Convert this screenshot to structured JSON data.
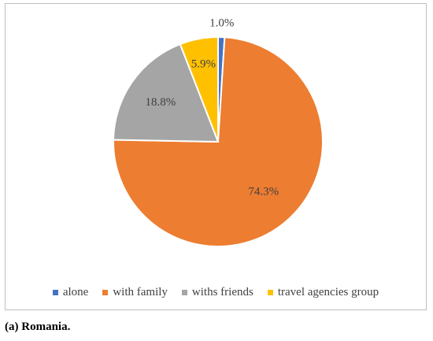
{
  "chart_data": {
    "type": "pie",
    "categories": [
      "alone",
      "with family",
      "withs friends",
      "travel agencies group"
    ],
    "values": [
      1.0,
      74.3,
      18.8,
      5.9
    ],
    "data_labels": [
      "1.0%",
      "74.3%",
      "18.8%",
      "5.9%"
    ],
    "colors": [
      "#4472C4",
      "#ED7D31",
      "#A5A5A5",
      "#FFC000"
    ],
    "legend_position": "bottom",
    "start_angle": "12 o'clock, clockwise"
  },
  "caption": "(a) Romania."
}
